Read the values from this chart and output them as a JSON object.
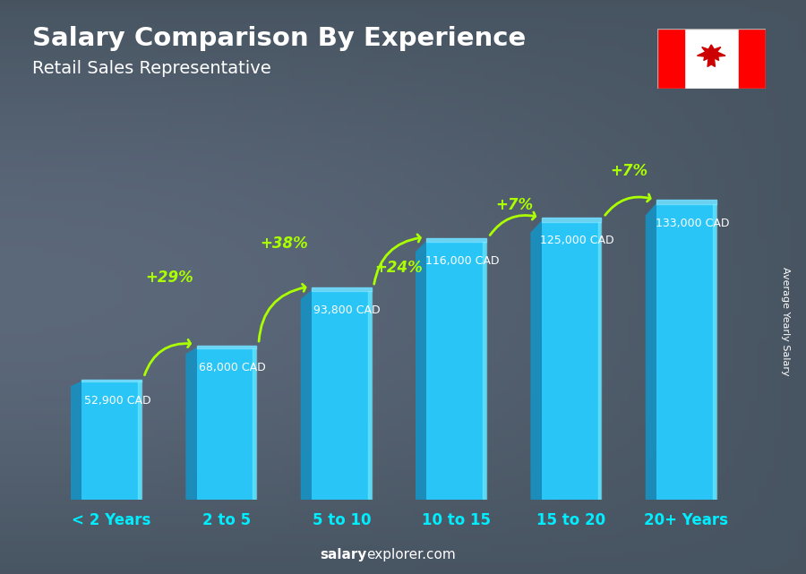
{
  "title": "Salary Comparison By Experience",
  "subtitle": "Retail Sales Representative",
  "categories": [
    "< 2 Years",
    "2 to 5",
    "5 to 10",
    "10 to 15",
    "15 to 20",
    "20+ Years"
  ],
  "values": [
    52900,
    68000,
    93800,
    116000,
    125000,
    133000
  ],
  "salary_labels": [
    "52,900 CAD",
    "68,000 CAD",
    "93,800 CAD",
    "116,000 CAD",
    "125,000 CAD",
    "133,000 CAD"
  ],
  "pct_labels": [
    "+29%",
    "+38%",
    "+24%",
    "+7%",
    "+7%"
  ],
  "bar_color": "#29C5F6",
  "bar_side_color": "#1A8FBF",
  "bar_top_color": "#70DEFF",
  "bar_highlight": "#7EEEFF",
  "bg_color": "#526070",
  "title_color": "#FFFFFF",
  "subtitle_color": "#FFFFFF",
  "salary_label_color": "#FFFFFF",
  "pct_color": "#AAFF00",
  "xtick_color": "#00EEFF",
  "ylabel_text": "Average Yearly Salary",
  "footer_bold": "salary",
  "footer_normal": "explorer.com",
  "ylim_max": 155000,
  "bar_width": 0.52
}
